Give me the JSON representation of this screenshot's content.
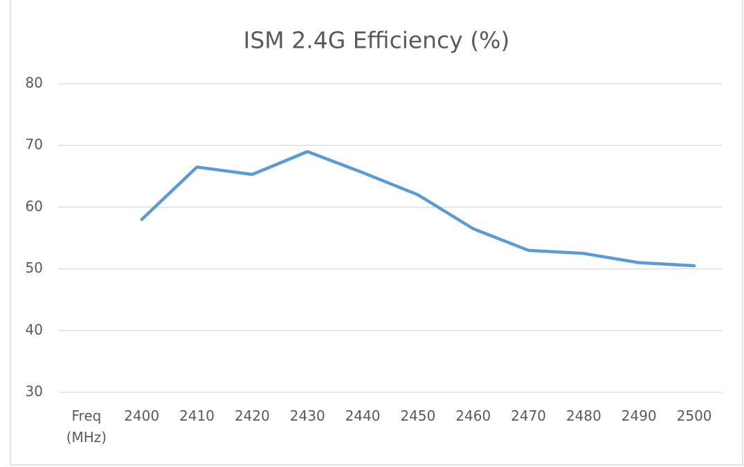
{
  "chart_data": {
    "type": "line",
    "title": "ISM 2.4G Efficiency (%)",
    "categories": [
      "Freq (MHz)",
      "2400",
      "2410",
      "2420",
      "2430",
      "2440",
      "2450",
      "2460",
      "2470",
      "2480",
      "2490",
      "2500"
    ],
    "series": [
      {
        "name": "Efficiency",
        "color": "#5b9bd5",
        "values": [
          null,
          58,
          66.5,
          65.3,
          69,
          65.6,
          62,
          56.5,
          53,
          52.5,
          51,
          50.5
        ]
      }
    ],
    "ylim": [
      30,
      80
    ],
    "yticks": [
      30,
      40,
      50,
      60,
      70,
      80
    ],
    "grid": true
  }
}
